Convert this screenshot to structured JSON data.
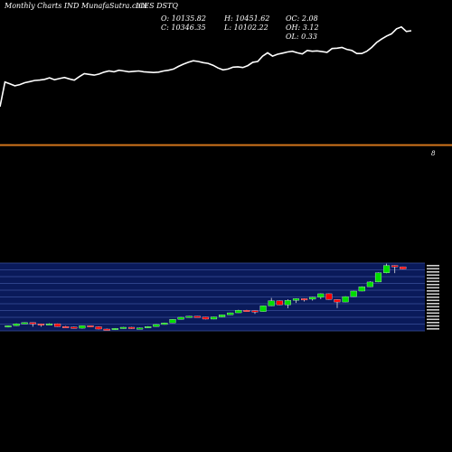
{
  "header": {
    "title": "Monthly Charts IND MunafaSutra.com",
    "symbol": "ICES DSTQ"
  },
  "ohlc": {
    "open_label": "O: 10135.82",
    "close_label": "C: 10346.35",
    "high_label": "H: 10451.62",
    "low_label": "L: 10102.22",
    "oc_label": "OC: 2.08",
    "oh_label": "OH: 3.12",
    "ol_label": "OL: 0.33"
  },
  "colors": {
    "background": "#000000",
    "line": "#ffffff",
    "ma_line": "#d4761c",
    "up": "#00dd00",
    "down": "#ff0000",
    "band": "#0a1a5a"
  },
  "chart_data": [
    {
      "type": "line",
      "series": [
        {
          "values": [
            10.0,
            16.5,
            16.0,
            15.5,
            15.8,
            16.3,
            16.6,
            16.9,
            17.0,
            17.2,
            17.6,
            17.1,
            17.4,
            17.7,
            17.3,
            17.0,
            17.9,
            18.7,
            18.5,
            18.3,
            18.6,
            19.1,
            19.4,
            19.2,
            19.6,
            19.4,
            19.2,
            19.3,
            19.4,
            19.2,
            19.1,
            19.0,
            19.1,
            19.4,
            19.6,
            19.9,
            20.6,
            21.2,
            21.7,
            22.1,
            21.9,
            21.6,
            21.4,
            20.9,
            20.2,
            19.7,
            19.9,
            20.4,
            20.5,
            20.3,
            20.8,
            21.7,
            21.9,
            23.3,
            24.2,
            23.3,
            23.8,
            24.1,
            24.4,
            24.6,
            24.2,
            23.9,
            24.8,
            24.6,
            24.7,
            24.5,
            24.3,
            25.3,
            25.4,
            25.6,
            25.1,
            24.8,
            24.0,
            24.0,
            24.6,
            25.6,
            26.9,
            27.8,
            28.6,
            29.2,
            30.5,
            31.0,
            29.8,
            30.0
          ]
        }
      ],
      "reference_label": "8"
    },
    {
      "type": "candlestick",
      "candles": [
        {
          "o": 2.0,
          "c": 3.5,
          "h": 3.8,
          "l": 1.8
        },
        {
          "o": 3.5,
          "c": 5.5,
          "h": 5.9,
          "l": 3.2
        },
        {
          "o": 5.5,
          "c": 6.8,
          "h": 7.1,
          "l": 5.3
        },
        {
          "o": 6.8,
          "c": 5.4,
          "h": 7.0,
          "l": 2.5
        },
        {
          "o": 5.4,
          "c": 4.6,
          "h": 5.7,
          "l": 2.5
        },
        {
          "o": 4.6,
          "c": 5.6,
          "h": 6.1,
          "l": 4.3
        },
        {
          "o": 5.6,
          "c": 2.7,
          "h": 5.8,
          "l": 2.4
        },
        {
          "o": 2.7,
          "c": 2.1,
          "h": 3.3,
          "l": 1.6
        },
        {
          "o": 2.1,
          "c": 0.9,
          "h": 2.5,
          "l": 0.6
        },
        {
          "o": 0.9,
          "c": 3.6,
          "h": 3.8,
          "l": 0.5
        },
        {
          "o": 3.6,
          "c": 2.4,
          "h": 3.8,
          "l": 2.0
        },
        {
          "o": 2.4,
          "c": 0.0,
          "h": 2.7,
          "l": -0.3
        },
        {
          "o": 0.0,
          "c": -0.8,
          "h": 0.5,
          "l": -1.1
        },
        {
          "o": -0.8,
          "c": 0.7,
          "h": 1.0,
          "l": -1.0
        },
        {
          "o": 0.7,
          "c": 1.9,
          "h": 2.1,
          "l": 0.4
        },
        {
          "o": 1.9,
          "c": 0.6,
          "h": 2.3,
          "l": 0.2
        },
        {
          "o": 0.6,
          "c": 1.2,
          "h": 1.5,
          "l": 0.4
        },
        {
          "o": 1.2,
          "c": 2.6,
          "h": 3.0,
          "l": 1.0
        },
        {
          "o": 2.6,
          "c": 4.8,
          "h": 5.1,
          "l": 2.5
        },
        {
          "o": 4.8,
          "c": 6.5,
          "h": 6.8,
          "l": 4.6
        },
        {
          "o": 6.5,
          "c": 10.2,
          "h": 10.5,
          "l": 6.3
        },
        {
          "o": 10.2,
          "c": 12.4,
          "h": 12.7,
          "l": 10.0
        },
        {
          "o": 12.4,
          "c": 13.5,
          "h": 13.8,
          "l": 12.2
        },
        {
          "o": 13.5,
          "c": 12.6,
          "h": 13.7,
          "l": 12.4
        },
        {
          "o": 12.6,
          "c": 10.5,
          "h": 12.9,
          "l": 10.2
        },
        {
          "o": 10.5,
          "c": 12.8,
          "h": 13.0,
          "l": 10.3
        },
        {
          "o": 12.8,
          "c": 15.0,
          "h": 15.2,
          "l": 12.5
        },
        {
          "o": 15.0,
          "c": 17.1,
          "h": 17.3,
          "l": 14.8
        },
        {
          "o": 17.1,
          "c": 19.8,
          "h": 20.3,
          "l": 17.0
        },
        {
          "o": 19.8,
          "c": 19.4,
          "h": 20.2,
          "l": 19.0
        },
        {
          "o": 19.4,
          "c": 18.5,
          "h": 19.7,
          "l": 16.0
        },
        {
          "o": 18.5,
          "c": 24.4,
          "h": 24.7,
          "l": 18.3
        },
        {
          "o": 24.4,
          "c": 29.8,
          "h": 32.8,
          "l": 24.2
        },
        {
          "o": 29.8,
          "c": 25.6,
          "h": 30.1,
          "l": 25.3
        },
        {
          "o": 25.6,
          "c": 30.2,
          "h": 31.3,
          "l": 22.0
        },
        {
          "o": 30.2,
          "c": 32.0,
          "h": 32.4,
          "l": 27.5
        },
        {
          "o": 32.0,
          "c": 31.5,
          "h": 32.3,
          "l": 29.0
        },
        {
          "o": 31.5,
          "c": 33.5,
          "h": 33.9,
          "l": 30.0
        },
        {
          "o": 33.5,
          "c": 37.2,
          "h": 37.5,
          "l": 31.6
        },
        {
          "o": 37.2,
          "c": 31.1,
          "h": 37.5,
          "l": 30.8
        },
        {
          "o": 31.1,
          "c": 28.5,
          "h": 31.4,
          "l": 22.1
        },
        {
          "o": 28.5,
          "c": 34.2,
          "h": 34.5,
          "l": 28.3
        },
        {
          "o": 34.2,
          "c": 40.0,
          "h": 40.3,
          "l": 34.0
        },
        {
          "o": 40.0,
          "c": 44.6,
          "h": 45.0,
          "l": 39.8
        },
        {
          "o": 44.6,
          "c": 49.6,
          "h": 50.2,
          "l": 44.4
        },
        {
          "o": 49.6,
          "c": 59.2,
          "h": 59.6,
          "l": 49.4
        },
        {
          "o": 59.2,
          "c": 67.0,
          "h": 68.9,
          "l": 58.8
        },
        {
          "o": 67.0,
          "c": 65.6,
          "h": 67.3,
          "l": 58.9
        },
        {
          "o": 65.6,
          "c": 63.3,
          "h": 65.8,
          "l": 63.0
        }
      ]
    }
  ]
}
